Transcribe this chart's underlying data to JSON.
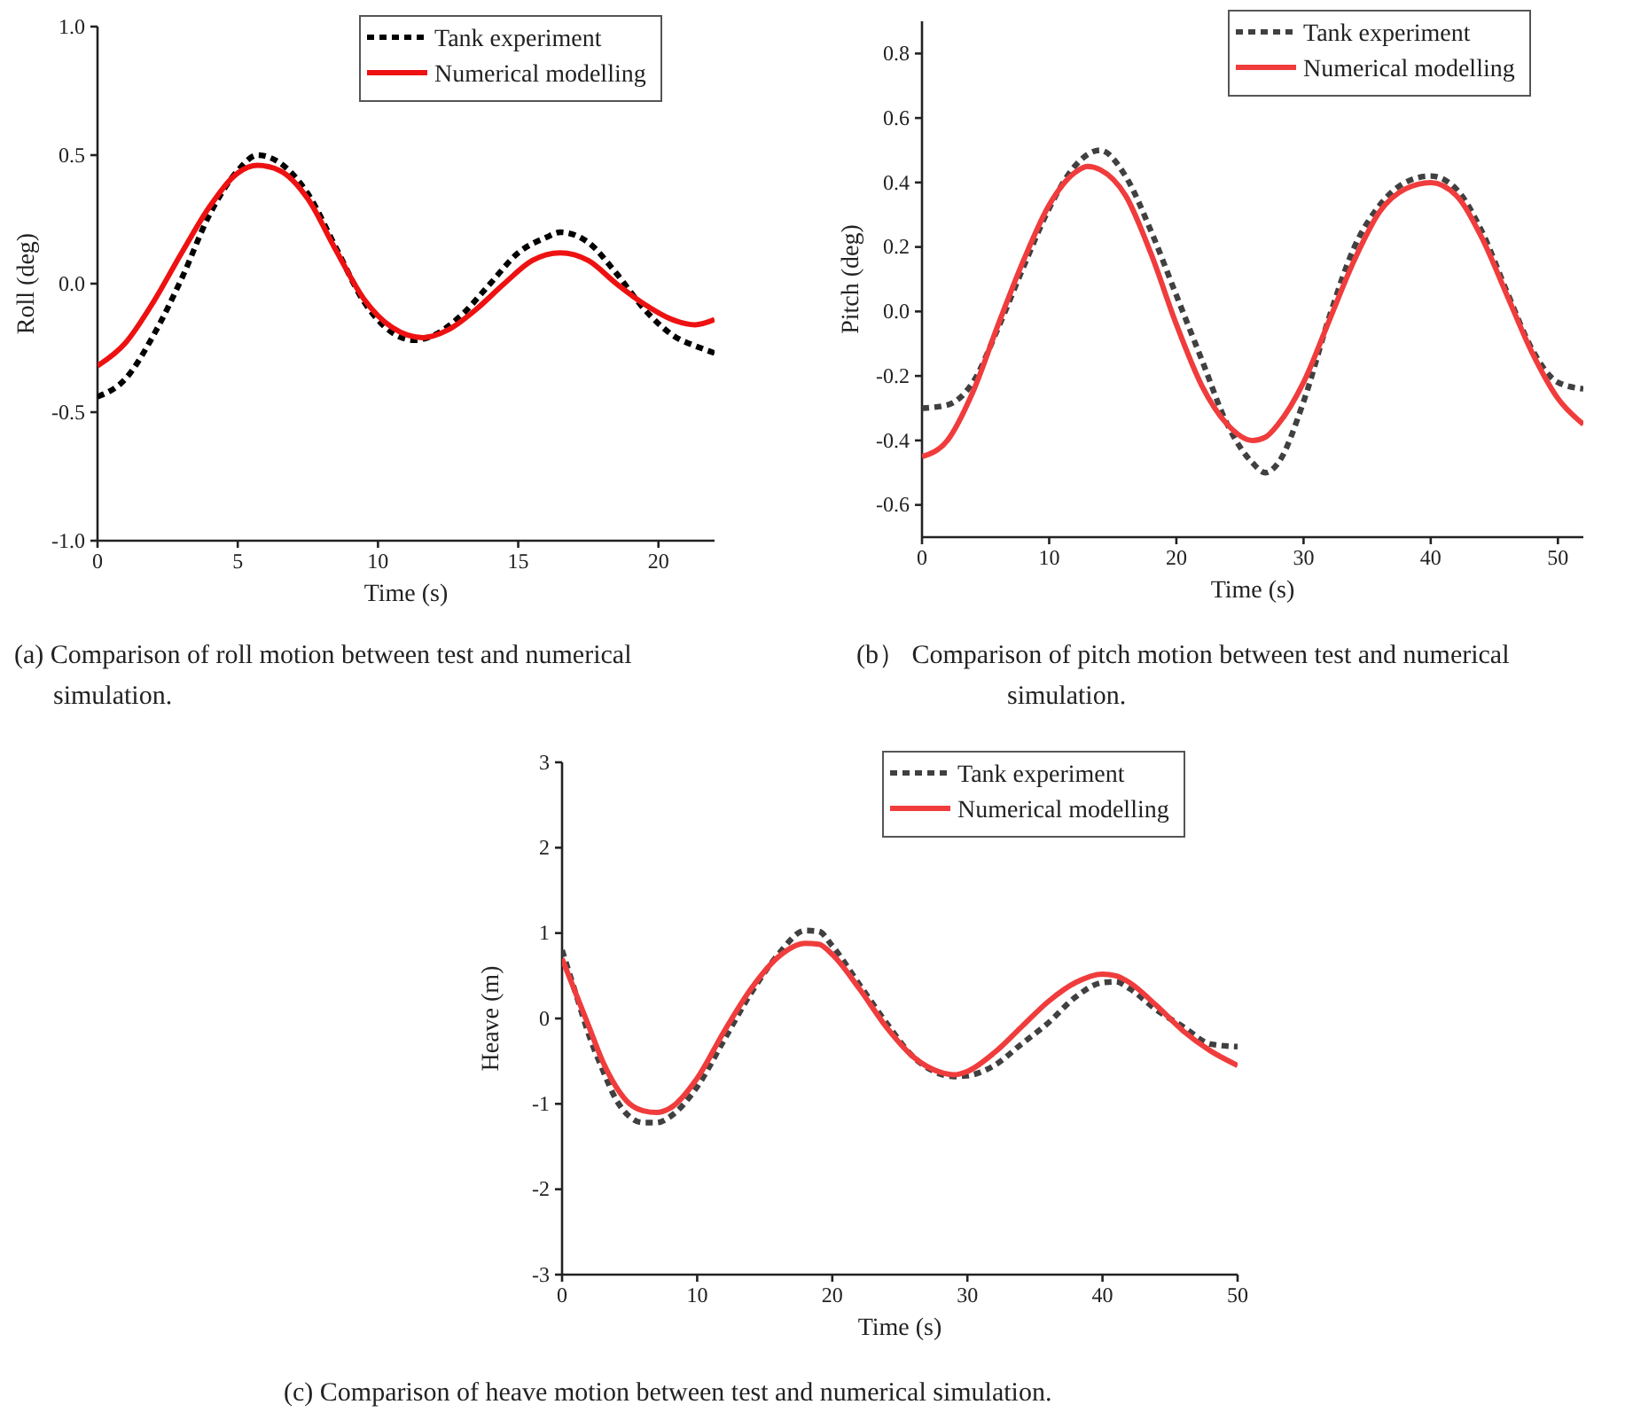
{
  "chart_data": [
    {
      "type": "line",
      "xlabel": "Time (s)",
      "ylabel": "Roll (deg)",
      "xlim": [
        0,
        22
      ],
      "ylim": [
        -1,
        1
      ],
      "xticks": [
        0,
        5,
        10,
        15,
        20
      ],
      "yticks": [
        {
          "value": -1,
          "label": "-1.0"
        },
        {
          "value": -0.5,
          "label": "-0.5"
        },
        {
          "value": 0,
          "label": "0.0"
        },
        {
          "value": 0.5,
          "label": "0.5"
        },
        {
          "value": 1,
          "label": "1.0"
        }
      ],
      "legend": "top right",
      "grid": false,
      "marker": "none",
      "annotations": [
        "(a) Comparison of roll motion between test and numerical simulation."
      ],
      "series": [
        {
          "name": "Tank experiment",
          "color": "#000000",
          "line_style": "dashed",
          "x": [
            0,
            1,
            2,
            3,
            4,
            5,
            5.7,
            6.5,
            7.5,
            8.5,
            9.5,
            10.5,
            11.3,
            12,
            13,
            14,
            15,
            16,
            16.5,
            17.5,
            18.5,
            19.5,
            20.5,
            21.5,
            22
          ],
          "values": [
            -0.44,
            -0.37,
            -0.2,
            0.02,
            0.27,
            0.44,
            0.5,
            0.47,
            0.35,
            0.14,
            -0.07,
            -0.19,
            -0.22,
            -0.2,
            -0.12,
            0.0,
            0.12,
            0.18,
            0.2,
            0.16,
            0.04,
            -0.1,
            -0.2,
            -0.25,
            -0.27
          ]
        },
        {
          "name": "Numerical modelling",
          "color": "#ee1111",
          "line_style": "solid",
          "x": [
            0,
            1,
            2,
            3,
            4,
            5,
            5.7,
            6.5,
            7.5,
            8.5,
            9.5,
            10.5,
            11.6,
            12.5,
            13.5,
            14.5,
            15.5,
            16.5,
            17.5,
            18.5,
            19.5,
            20.5,
            21.3,
            22
          ],
          "values": [
            -0.32,
            -0.23,
            -0.07,
            0.12,
            0.3,
            0.43,
            0.46,
            0.44,
            0.33,
            0.13,
            -0.06,
            -0.17,
            -0.21,
            -0.18,
            -0.1,
            0.0,
            0.09,
            0.12,
            0.09,
            0.0,
            -0.08,
            -0.14,
            -0.16,
            -0.14
          ]
        }
      ]
    },
    {
      "type": "line",
      "xlabel": "Time (s)",
      "ylabel": "Pitch (deg)",
      "xlim": [
        0,
        52
      ],
      "ylim": [
        -0.7,
        0.9
      ],
      "xticks": [
        0,
        10,
        20,
        30,
        40,
        50
      ],
      "yticks": [
        -0.6,
        -0.4,
        -0.2,
        {
          "value": 0,
          "label": "0.0"
        },
        0.2,
        0.4,
        0.6,
        0.8
      ],
      "legend": "top right",
      "grid": false,
      "marker": "none",
      "annotations": [
        "(b） Comparison of pitch motion between test and numerical simulation."
      ],
      "series": [
        {
          "name": "Tank experiment",
          "color": "#404040",
          "line_style": "dashed",
          "x": [
            0,
            2,
            4,
            6,
            8,
            10,
            12,
            14,
            16,
            18,
            20,
            22,
            24,
            26,
            27,
            28,
            30,
            32,
            34,
            36,
            38,
            40,
            42,
            44,
            46,
            48,
            50,
            52
          ],
          "values": [
            -0.3,
            -0.29,
            -0.22,
            -0.05,
            0.14,
            0.32,
            0.45,
            0.5,
            0.42,
            0.25,
            0.05,
            -0.15,
            -0.35,
            -0.47,
            -0.5,
            -0.47,
            -0.28,
            -0.02,
            0.2,
            0.33,
            0.4,
            0.42,
            0.38,
            0.25,
            0.06,
            -0.12,
            -0.22,
            -0.24
          ]
        },
        {
          "name": "Numerical modelling",
          "color": "#f03c3c",
          "line_style": "solid",
          "x": [
            0,
            2,
            4,
            6,
            8,
            10,
            12,
            13,
            14,
            16,
            18,
            20,
            22,
            24,
            26,
            27,
            28,
            30,
            32,
            34,
            36,
            38,
            40,
            42,
            44,
            46,
            48,
            50,
            52
          ],
          "values": [
            -0.45,
            -0.4,
            -0.25,
            -0.04,
            0.16,
            0.33,
            0.43,
            0.45,
            0.44,
            0.36,
            0.18,
            -0.04,
            -0.23,
            -0.35,
            -0.4,
            -0.39,
            -0.35,
            -0.22,
            -0.03,
            0.16,
            0.31,
            0.38,
            0.4,
            0.36,
            0.23,
            0.05,
            -0.13,
            -0.27,
            -0.35
          ]
        }
      ]
    },
    {
      "type": "line",
      "xlabel": "Time (s)",
      "ylabel": "Heave (m)",
      "xlim": [
        0,
        50
      ],
      "ylim": [
        -3,
        3
      ],
      "xticks": [
        0,
        10,
        20,
        30,
        40,
        50
      ],
      "yticks": [
        -3,
        -2,
        -1,
        0,
        1,
        2,
        3
      ],
      "legend": "top right",
      "grid": false,
      "marker": "none",
      "annotations": [
        "(c) Comparison of heave motion between test and numerical simulation."
      ],
      "series": [
        {
          "name": "Tank experiment",
          "color": "#404040",
          "line_style": "dashed",
          "x": [
            0,
            1,
            2,
            3,
            4,
            5,
            6,
            7,
            8,
            10,
            12,
            14,
            16,
            18,
            19,
            20,
            22,
            24,
            26,
            28,
            29,
            30,
            32,
            34,
            36,
            38,
            40,
            41,
            42,
            44,
            46,
            48,
            50
          ],
          "values": [
            0.8,
            0.3,
            -0.2,
            -0.6,
            -0.95,
            -1.15,
            -1.22,
            -1.22,
            -1.15,
            -0.8,
            -0.25,
            0.3,
            0.75,
            1.03,
            1.02,
            0.85,
            0.4,
            -0.05,
            -0.45,
            -0.65,
            -0.68,
            -0.67,
            -0.55,
            -0.3,
            -0.05,
            0.25,
            0.42,
            0.43,
            0.35,
            0.1,
            -0.1,
            -0.3,
            -0.33
          ]
        },
        {
          "name": "Numerical modelling",
          "color": "#f03c3c",
          "line_style": "solid",
          "x": [
            0,
            1,
            2,
            3,
            4,
            5,
            6,
            7,
            8,
            10,
            12,
            14,
            16,
            18,
            19,
            20,
            22,
            24,
            26,
            28,
            29,
            30,
            32,
            34,
            36,
            38,
            40,
            41,
            42,
            44,
            46,
            48,
            50
          ],
          "values": [
            0.7,
            0.3,
            -0.1,
            -0.5,
            -0.8,
            -1.0,
            -1.08,
            -1.1,
            -1.05,
            -0.7,
            -0.15,
            0.35,
            0.72,
            0.88,
            0.87,
            0.75,
            0.35,
            -0.1,
            -0.45,
            -0.63,
            -0.66,
            -0.62,
            -0.4,
            -0.1,
            0.2,
            0.42,
            0.52,
            0.5,
            0.42,
            0.15,
            -0.15,
            -0.38,
            -0.55
          ]
        }
      ]
    }
  ]
}
